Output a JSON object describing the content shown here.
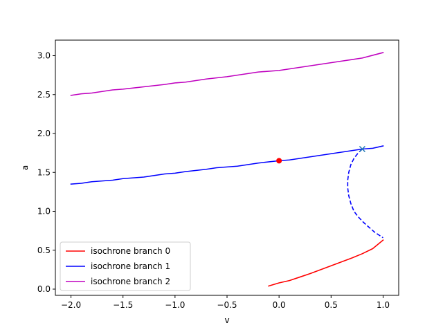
{
  "chart_data": {
    "type": "line",
    "xlabel": "v",
    "ylabel": "a",
    "xlim": [
      -2.15,
      1.15
    ],
    "ylim": [
      -0.08,
      3.2
    ],
    "xticks": [
      -2.0,
      -1.5,
      -1.0,
      -0.5,
      0.0,
      0.5,
      1.0
    ],
    "xtick_labels": [
      "−2.0",
      "−1.5",
      "−1.0",
      "−0.5",
      "0.0",
      "0.5",
      "1.0"
    ],
    "yticks": [
      0.0,
      0.5,
      1.0,
      1.5,
      2.0,
      2.5,
      3.0
    ],
    "ytick_labels": [
      "0.0",
      "0.5",
      "1.0",
      "1.5",
      "2.0",
      "2.5",
      "3.0"
    ],
    "grid": false,
    "legend_position": "lower-left",
    "series": [
      {
        "name": "isochrone branch 0",
        "color": "#ff0000",
        "style": "solid",
        "x": [
          -0.1,
          0.0,
          0.1,
          0.2,
          0.3,
          0.4,
          0.5,
          0.6,
          0.7,
          0.8,
          0.9,
          1.0
        ],
        "y": [
          0.04,
          0.08,
          0.11,
          0.155,
          0.2,
          0.25,
          0.3,
          0.35,
          0.4,
          0.455,
          0.52,
          0.63
        ]
      },
      {
        "name": "isochrone branch 1",
        "color": "#0000ff",
        "style": "solid",
        "x": [
          -2.0,
          -1.9,
          -1.8,
          -1.6,
          -1.5,
          -1.3,
          -1.1,
          -1.0,
          -0.9,
          -0.7,
          -0.6,
          -0.4,
          -0.2,
          0.0,
          0.1,
          0.3,
          0.5,
          0.7,
          0.8,
          0.9,
          1.0
        ],
        "y": [
          1.35,
          1.36,
          1.38,
          1.4,
          1.42,
          1.44,
          1.48,
          1.49,
          1.51,
          1.54,
          1.56,
          1.58,
          1.62,
          1.65,
          1.66,
          1.7,
          1.74,
          1.78,
          1.8,
          1.81,
          1.84
        ]
      },
      {
        "name": "isochrone branch 2",
        "color": "#bf00bf",
        "style": "solid",
        "x": [
          -2.0,
          -1.9,
          -1.8,
          -1.6,
          -1.5,
          -1.3,
          -1.1,
          -1.0,
          -0.9,
          -0.7,
          -0.5,
          -0.3,
          -0.2,
          0.0,
          0.2,
          0.4,
          0.6,
          0.8,
          1.0
        ],
        "y": [
          2.49,
          2.51,
          2.52,
          2.56,
          2.57,
          2.6,
          2.63,
          2.65,
          2.66,
          2.7,
          2.73,
          2.77,
          2.79,
          2.81,
          2.85,
          2.89,
          2.93,
          2.97,
          3.04
        ]
      }
    ],
    "dashed_curve": {
      "color": "#0000ff",
      "style": "dashed",
      "x": [
        0.8,
        0.76,
        0.72,
        0.69,
        0.67,
        0.66,
        0.66,
        0.67,
        0.69,
        0.72,
        0.76,
        0.81,
        0.86,
        0.92,
        1.0
      ],
      "y": [
        1.8,
        1.75,
        1.68,
        1.6,
        1.5,
        1.4,
        1.3,
        1.2,
        1.1,
        1.0,
        0.93,
        0.86,
        0.8,
        0.73,
        0.66
      ]
    },
    "markers": [
      {
        "kind": "filled-circle",
        "color": "#ff0000",
        "x": 0.0,
        "y": 1.65
      },
      {
        "kind": "x-mark",
        "color": "#1f77b4",
        "x": 0.8,
        "y": 1.8
      }
    ]
  }
}
